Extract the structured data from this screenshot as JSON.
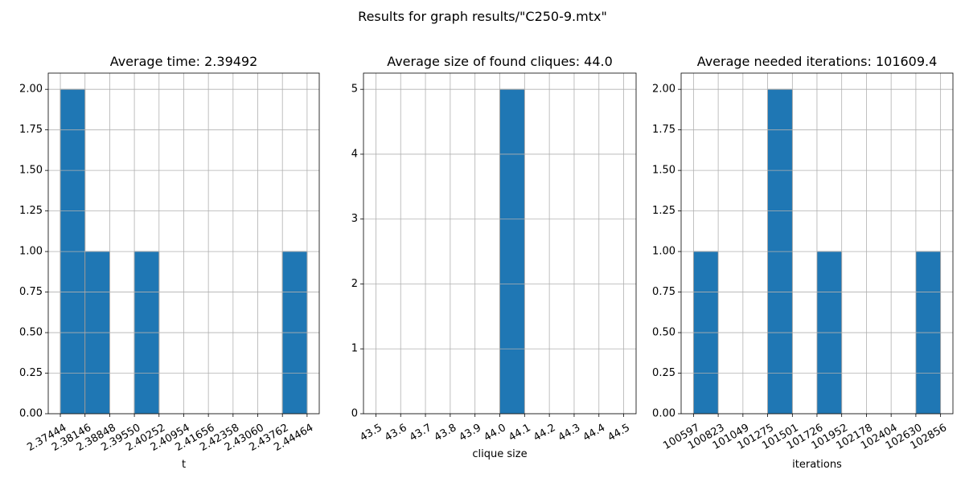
{
  "suptitle": "Results for graph results/\"C250-9.mtx\"",
  "chart_data": [
    {
      "type": "bar",
      "title": "Average time: 2.39492",
      "xlabel": "t",
      "ylabel": "",
      "grid": true,
      "bin_edges": [
        2.37444,
        2.38146,
        2.38848,
        2.3955,
        2.40252,
        2.40954,
        2.41656,
        2.42358,
        2.4306,
        2.43762,
        2.44464
      ],
      "xlim": [
        2.371,
        2.4481
      ],
      "ylim": [
        0,
        2.1
      ],
      "xticks": [
        2.37444,
        2.38146,
        2.38848,
        2.3955,
        2.40252,
        2.40954,
        2.41656,
        2.42358,
        2.4306,
        2.43762,
        2.44464
      ],
      "xtick_labels": [
        "2.37444",
        "2.38146",
        "2.38848",
        "2.39550",
        "2.40252",
        "2.40954",
        "2.41656",
        "2.42358",
        "2.43060",
        "2.43762",
        "2.44464"
      ],
      "yticks": [
        0,
        0.25,
        0.5,
        0.75,
        1.0,
        1.25,
        1.5,
        1.75,
        2.0
      ],
      "ytick_labels": [
        "0.00",
        "0.25",
        "0.50",
        "0.75",
        "1.00",
        "1.25",
        "1.50",
        "1.75",
        "2.00"
      ],
      "values": [
        2,
        1,
        0,
        1,
        0,
        0,
        0,
        0,
        0,
        1
      ],
      "color": "#1f77b4"
    },
    {
      "type": "bar",
      "title": "Average size of found cliques: 44.0",
      "xlabel": "clique size",
      "ylabel": "",
      "grid": true,
      "bin_edges": [
        43.5,
        43.6,
        43.7,
        43.8,
        43.9,
        44.0,
        44.1,
        44.2,
        44.3,
        44.4,
        44.5
      ],
      "xlim": [
        43.45,
        44.55
      ],
      "ylim": [
        0,
        5.25
      ],
      "xticks": [
        43.5,
        43.6,
        43.7,
        43.8,
        43.9,
        44.0,
        44.1,
        44.2,
        44.3,
        44.4,
        44.5
      ],
      "xtick_labels": [
        "43.5",
        "43.6",
        "43.7",
        "43.8",
        "43.9",
        "44.0",
        "44.1",
        "44.2",
        "44.3",
        "44.4",
        "44.5"
      ],
      "yticks": [
        0,
        1,
        2,
        3,
        4,
        5
      ],
      "ytick_labels": [
        "0",
        "1",
        "2",
        "3",
        "4",
        "5"
      ],
      "values": [
        0,
        0,
        0,
        0,
        0,
        5,
        0,
        0,
        0,
        0
      ],
      "color": "#1f77b4"
    },
    {
      "type": "bar",
      "title": "Average needed iterations: 101609.4",
      "xlabel": "iterations",
      "ylabel": "",
      "grid": true,
      "bin_edges": [
        100597,
        100823,
        101049,
        101275,
        101501,
        101726,
        101952,
        102178,
        102404,
        102630,
        102856
      ],
      "xlim": [
        100484,
        102969
      ],
      "ylim": [
        0,
        2.1
      ],
      "xticks": [
        100597,
        100823,
        101049,
        101275,
        101501,
        101726,
        101952,
        102178,
        102404,
        102630,
        102856
      ],
      "xtick_labels": [
        "100597",
        "100823",
        "101049",
        "101275",
        "101501",
        "101726",
        "101952",
        "102178",
        "102404",
        "102630",
        "102856"
      ],
      "yticks": [
        0,
        0.25,
        0.5,
        0.75,
        1.0,
        1.25,
        1.5,
        1.75,
        2.0
      ],
      "ytick_labels": [
        "0.00",
        "0.25",
        "0.50",
        "0.75",
        "1.00",
        "1.25",
        "1.50",
        "1.75",
        "2.00"
      ],
      "values": [
        1,
        0,
        0,
        2,
        0,
        1,
        0,
        0,
        0,
        1
      ],
      "color": "#1f77b4"
    }
  ]
}
